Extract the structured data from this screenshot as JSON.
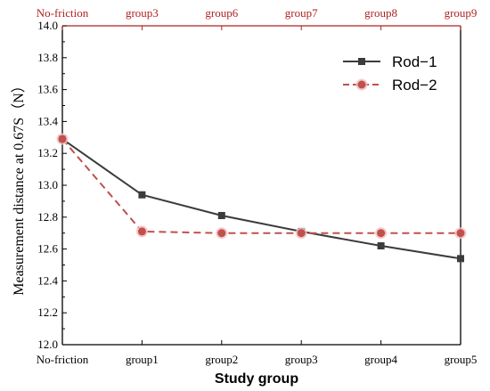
{
  "chart_data": {
    "type": "line",
    "categories": [
      "No-friction",
      "group1",
      "group2",
      "group3",
      "group4",
      "group5"
    ],
    "top_categories": [
      "No-friction",
      "group3",
      "group6",
      "group7",
      "group8",
      "group9"
    ],
    "series": [
      {
        "name": "Rod−1",
        "values": [
          13.29,
          12.94,
          12.81,
          12.71,
          12.62,
          12.54
        ],
        "color": "#3c3c3c",
        "marker": "square",
        "line": "solid"
      },
      {
        "name": "Rod−2",
        "values": [
          13.29,
          12.71,
          12.7,
          12.7,
          12.7,
          12.7
        ],
        "color": "#c0504d",
        "marker": "circle",
        "line": "dashed"
      }
    ],
    "xlabel": "Study group",
    "ylabel": "Measurement distance at 0.67S（N）",
    "ylim": [
      12.0,
      14.0
    ],
    "yticks": [
      "12.0",
      "12.2",
      "12.4",
      "12.6",
      "12.8",
      "13.0",
      "13.2",
      "13.4",
      "13.6",
      "13.8",
      "14.0"
    ],
    "top_axis_color": "#b22222",
    "legend_position": "top-right",
    "grid": false
  }
}
